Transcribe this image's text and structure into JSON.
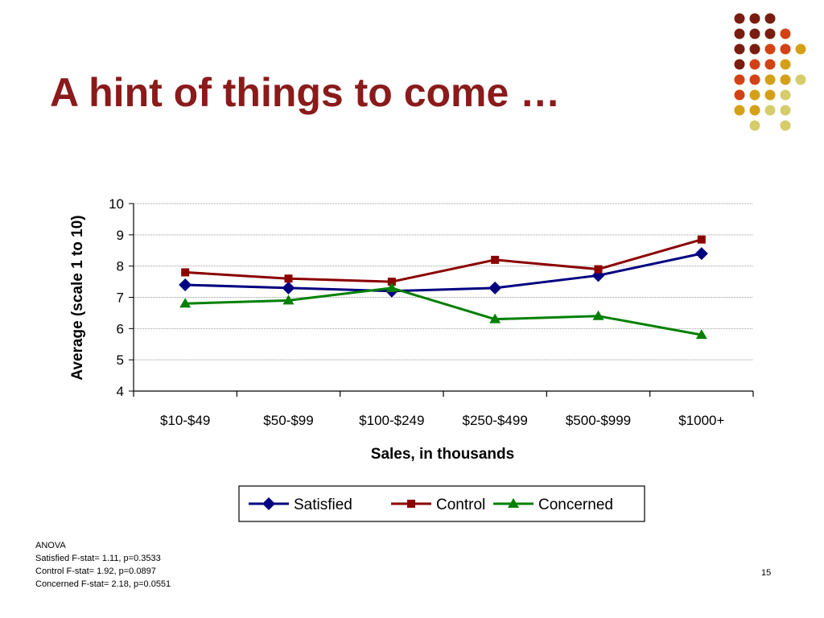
{
  "slide": {
    "title": "A hint of things to come …",
    "page_number": "15"
  },
  "colors": {
    "title": "#8b1a1a",
    "dot_palette": [
      "#7a1c10",
      "#d34214",
      "#d4a017",
      "#d6cc6b"
    ]
  },
  "decoration": {
    "dot_rows": [
      [
        "#7a1c10",
        "#7a1c10",
        "#7a1c10",
        null,
        null
      ],
      [
        "#7a1c10",
        "#7a1c10",
        "#7a1c10",
        "#d34214",
        null
      ],
      [
        "#7a1c10",
        "#7a1c10",
        "#d34214",
        "#d34214",
        "#d4a017"
      ],
      [
        "#7a1c10",
        "#d34214",
        "#d34214",
        "#d4a017",
        null
      ],
      [
        "#d34214",
        "#d34214",
        "#d4a017",
        "#d4a017",
        "#d6cc6b"
      ],
      [
        "#d34214",
        "#d4a017",
        "#d4a017",
        "#d6cc6b",
        null
      ],
      [
        "#d4a017",
        "#d4a017",
        "#d6cc6b",
        "#d6cc6b",
        null
      ],
      [
        null,
        "#d6cc6b",
        null,
        "#d6cc6b",
        null
      ]
    ]
  },
  "anova": {
    "heading": "ANOVA",
    "lines": [
      "Satisfied F-stat= 1.11, p=0.3533",
      "Control F-stat= 1.92, p=0.0897",
      "Concerned F-stat= 2.18, p=0.0551"
    ]
  },
  "chart_data": {
    "type": "line",
    "title": "",
    "xlabel": "Sales, in thousands",
    "ylabel": "Average (scale 1 to 10)",
    "categories": [
      "$10-$49",
      "$50-$99",
      "$100-$249",
      "$250-$499",
      "$500-$999",
      "$1000+"
    ],
    "ylim": [
      4,
      10
    ],
    "yticks": [
      4,
      5,
      6,
      7,
      8,
      9,
      10
    ],
    "grid": true,
    "legend_position": "bottom",
    "series": [
      {
        "name": "Satisfied",
        "color": "#000080",
        "marker": "diamond",
        "values": [
          7.4,
          7.3,
          7.2,
          7.3,
          7.7,
          8.4
        ]
      },
      {
        "name": "Control",
        "color": "#8b0000",
        "marker": "square",
        "values": [
          7.8,
          7.6,
          7.5,
          8.2,
          7.9,
          8.85
        ]
      },
      {
        "name": "Concerned",
        "color": "#008000",
        "marker": "triangle",
        "values": [
          6.8,
          6.9,
          7.3,
          6.3,
          6.4,
          5.8
        ]
      }
    ]
  }
}
